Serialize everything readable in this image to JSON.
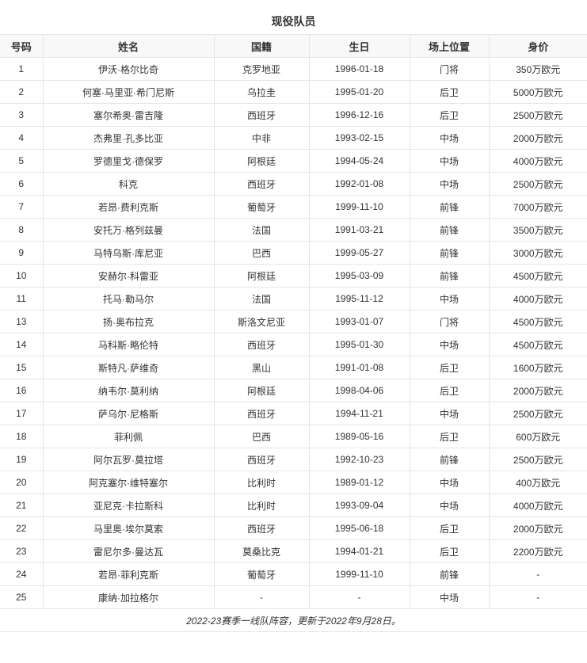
{
  "title": "现役队员",
  "headers": [
    "号码",
    "姓名",
    "国籍",
    "生日",
    "场上位置",
    "身价"
  ],
  "rows": [
    [
      "1",
      "伊沃·格尔比奇",
      "克罗地亚",
      "1996-01-18",
      "门将",
      "350万欧元"
    ],
    [
      "2",
      "何塞·马里亚·希门尼斯",
      "乌拉圭",
      "1995-01-20",
      "后卫",
      "5000万欧元"
    ],
    [
      "3",
      "塞尔希奥·雷吉隆",
      "西班牙",
      "1996-12-16",
      "后卫",
      "2500万欧元"
    ],
    [
      "4",
      "杰弗里·孔多比亚",
      "中非",
      "1993-02-15",
      "中场",
      "2000万欧元"
    ],
    [
      "5",
      "罗德里戈·德保罗",
      "阿根廷",
      "1994-05-24",
      "中场",
      "4000万欧元"
    ],
    [
      "6",
      "科克",
      "西班牙",
      "1992-01-08",
      "中场",
      "2500万欧元"
    ],
    [
      "7",
      "若昂·费利克斯",
      "葡萄牙",
      "1999-11-10",
      "前锋",
      "7000万欧元"
    ],
    [
      "8",
      "安托万·格列兹曼",
      "法国",
      "1991-03-21",
      "前锋",
      "3500万欧元"
    ],
    [
      "9",
      "马特乌斯·库尼亚",
      "巴西",
      "1999-05-27",
      "前锋",
      "3000万欧元"
    ],
    [
      "10",
      "安赫尔·科雷亚",
      "阿根廷",
      "1995-03-09",
      "前锋",
      "4500万欧元"
    ],
    [
      "11",
      "托马·勒马尔",
      "法国",
      "1995-11-12",
      "中场",
      "4000万欧元"
    ],
    [
      "13",
      "扬·奥布拉克",
      "斯洛文尼亚",
      "1993-01-07",
      "门将",
      "4500万欧元"
    ],
    [
      "14",
      "马科斯·略伦特",
      "西班牙",
      "1995-01-30",
      "中场",
      "4500万欧元"
    ],
    [
      "15",
      "斯特凡·萨维奇",
      "黑山",
      "1991-01-08",
      "后卫",
      "1600万欧元"
    ],
    [
      "16",
      "纳韦尔·莫利纳",
      "阿根廷",
      "1998-04-06",
      "后卫",
      "2000万欧元"
    ],
    [
      "17",
      "萨乌尔·尼格斯",
      "西班牙",
      "1994-11-21",
      "中场",
      "2500万欧元"
    ],
    [
      "18",
      "菲利佩",
      "巴西",
      "1989-05-16",
      "后卫",
      "600万欧元"
    ],
    [
      "19",
      "阿尔瓦罗·莫拉塔",
      "西班牙",
      "1992-10-23",
      "前锋",
      "2500万欧元"
    ],
    [
      "20",
      "阿克塞尔·维特塞尔",
      "比利时",
      "1989-01-12",
      "中场",
      "400万欧元"
    ],
    [
      "21",
      "亚尼克·卡拉斯科",
      "比利时",
      "1993-09-04",
      "中场",
      "4000万欧元"
    ],
    [
      "22",
      "马里奥·埃尔莫索",
      "西班牙",
      "1995-06-18",
      "后卫",
      "2000万欧元"
    ],
    [
      "23",
      "雷尼尔多·曼达瓦",
      "莫桑比克",
      "1994-01-21",
      "后卫",
      "2200万欧元"
    ],
    [
      "24",
      "若昂·菲利克斯",
      "葡萄牙",
      "1999-11-10",
      "前锋",
      "-"
    ],
    [
      "25",
      "康纳·加拉格尔",
      "-",
      "-",
      "中场",
      "-"
    ]
  ],
  "caption": "2022-23赛季一线队阵容，更新于2022年9月28日。"
}
